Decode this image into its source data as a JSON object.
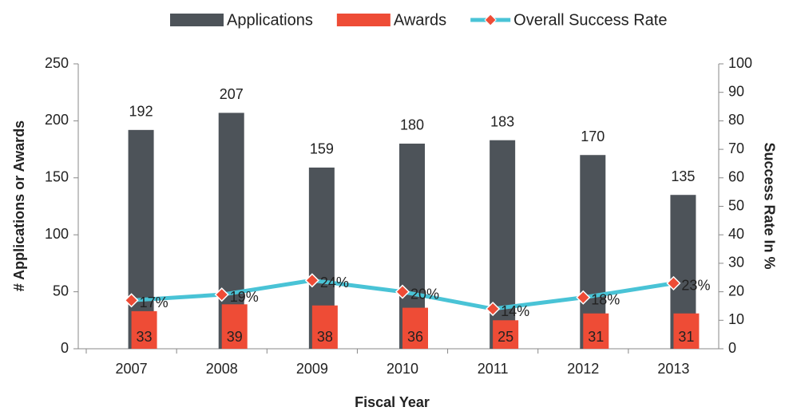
{
  "chart_data": {
    "type": "bar",
    "categories": [
      "2007",
      "2008",
      "2009",
      "2010",
      "2011",
      "2012",
      "2013"
    ],
    "series": [
      {
        "name": "Applications",
        "type": "bar",
        "color": "#4d5359",
        "values": [
          192,
          207,
          159,
          180,
          183,
          170,
          135
        ]
      },
      {
        "name": "Awards",
        "type": "bar",
        "color": "#ee4c36",
        "values": [
          33,
          39,
          38,
          36,
          25,
          31,
          31
        ]
      },
      {
        "name": "Overall Success Rate",
        "type": "line",
        "axis": "y2",
        "color": "#49c3d6",
        "marker_color": "#ee4c36",
        "values": [
          17,
          19,
          24,
          20,
          14,
          18,
          23
        ],
        "value_labels": [
          "17%",
          "19%",
          "24%",
          "20%",
          "14%",
          "18%",
          "23%"
        ]
      }
    ],
    "xlabel": "Fiscal Year",
    "ylabel": "# Applications or Awards",
    "y2label": "Success Rate In %",
    "ylim": [
      0,
      250
    ],
    "yticks": [
      0,
      50,
      100,
      150,
      200,
      250
    ],
    "y2lim": [
      0,
      100
    ],
    "y2ticks": [
      0,
      10,
      20,
      30,
      40,
      50,
      60,
      70,
      80,
      90,
      100
    ],
    "legend": "top"
  }
}
